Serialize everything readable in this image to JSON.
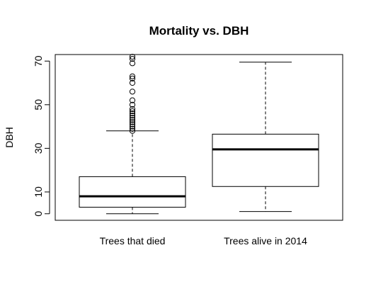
{
  "chart_data": {
    "type": "boxplot",
    "title": "Mortality vs. DBH",
    "ylabel": "DBH",
    "xlabel": "",
    "ylim": [
      -3,
      73
    ],
    "yticks": [
      0,
      10,
      30,
      50,
      70
    ],
    "grid": false,
    "categories": [
      "Trees that died",
      "Trees alive in 2014"
    ],
    "boxes": [
      {
        "category": "Trees that died",
        "whisker_low": 0,
        "q1": 3,
        "median": 8,
        "q3": 17,
        "whisker_high": 38,
        "outliers": [
          38,
          39,
          40,
          41,
          42,
          43,
          44,
          45,
          46,
          47,
          48,
          50,
          52,
          56,
          60,
          62,
          63,
          69,
          71,
          72
        ]
      },
      {
        "category": "Trees alive in 2014",
        "whisker_low": 1,
        "q1": 12.5,
        "median": 29.5,
        "q3": 36.5,
        "whisker_high": 69.5,
        "outliers": []
      }
    ]
  }
}
